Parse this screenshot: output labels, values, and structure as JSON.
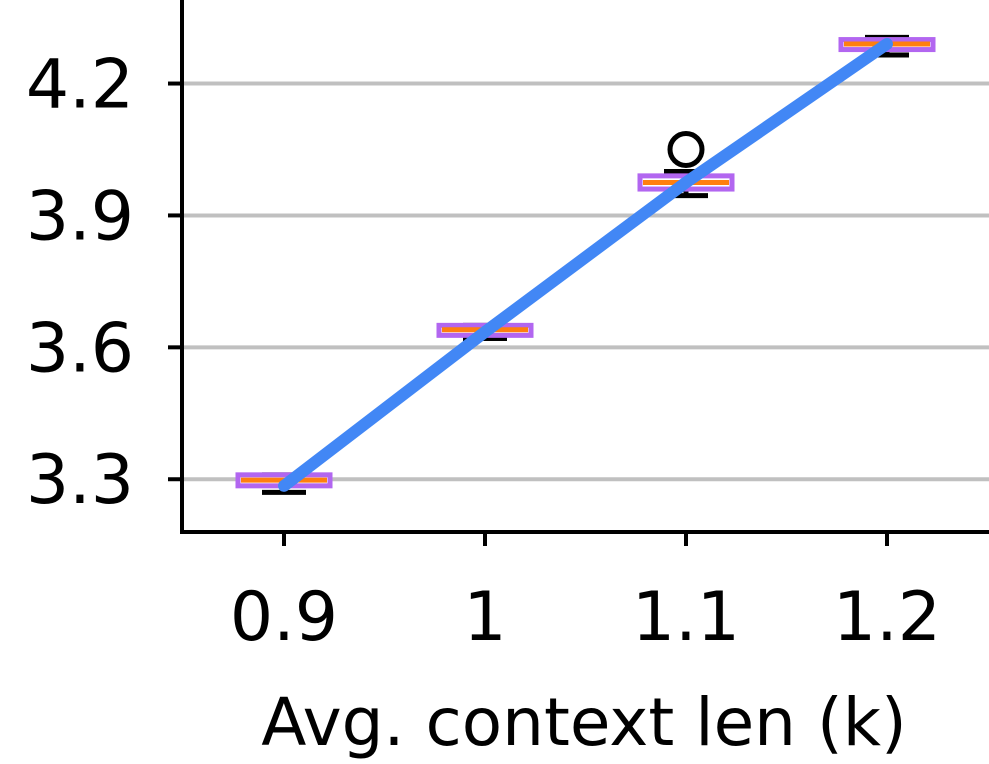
{
  "chart_data": {
    "type": "box",
    "title": "",
    "xlabel": "Avg. context len (k)",
    "ylabel": "",
    "categories": [
      "0.9",
      "1",
      "1.1",
      "1.2"
    ],
    "ylim": [
      3.18,
      4.39
    ],
    "yticks": [
      3.3,
      3.6,
      3.9,
      4.2
    ],
    "ytick_labels": [
      "3.3",
      "3.6",
      "3.9",
      "4.2"
    ],
    "grid": "horizontal",
    "boxes": [
      {
        "category": "0.9",
        "whisker_low": 3.27,
        "q1": 3.285,
        "median": 3.298,
        "q3": 3.31,
        "whisker_high": 3.31,
        "outliers": []
      },
      {
        "category": "1",
        "whisker_low": 3.62,
        "q1": 3.63,
        "median": 3.64,
        "q3": 3.65,
        "whisker_high": 3.65,
        "outliers": []
      },
      {
        "category": "1.1",
        "whisker_low": 3.945,
        "q1": 3.96,
        "median": 3.975,
        "q3": 3.99,
        "whisker_high": 4.0,
        "outliers": [
          4.05
        ]
      },
      {
        "category": "1.2",
        "whisker_low": 4.265,
        "q1": 4.28,
        "median": 4.29,
        "q3": 4.3,
        "whisker_high": 4.305,
        "outliers": []
      }
    ],
    "trend_line": {
      "values": [
        3.285,
        3.635,
        3.975,
        4.29
      ]
    },
    "colors": {
      "box_edge": "#b266f0",
      "median": "#ff7f0e",
      "whisker": "#000000",
      "trend": "#4287f5",
      "grid": "#c0c0c0"
    }
  }
}
